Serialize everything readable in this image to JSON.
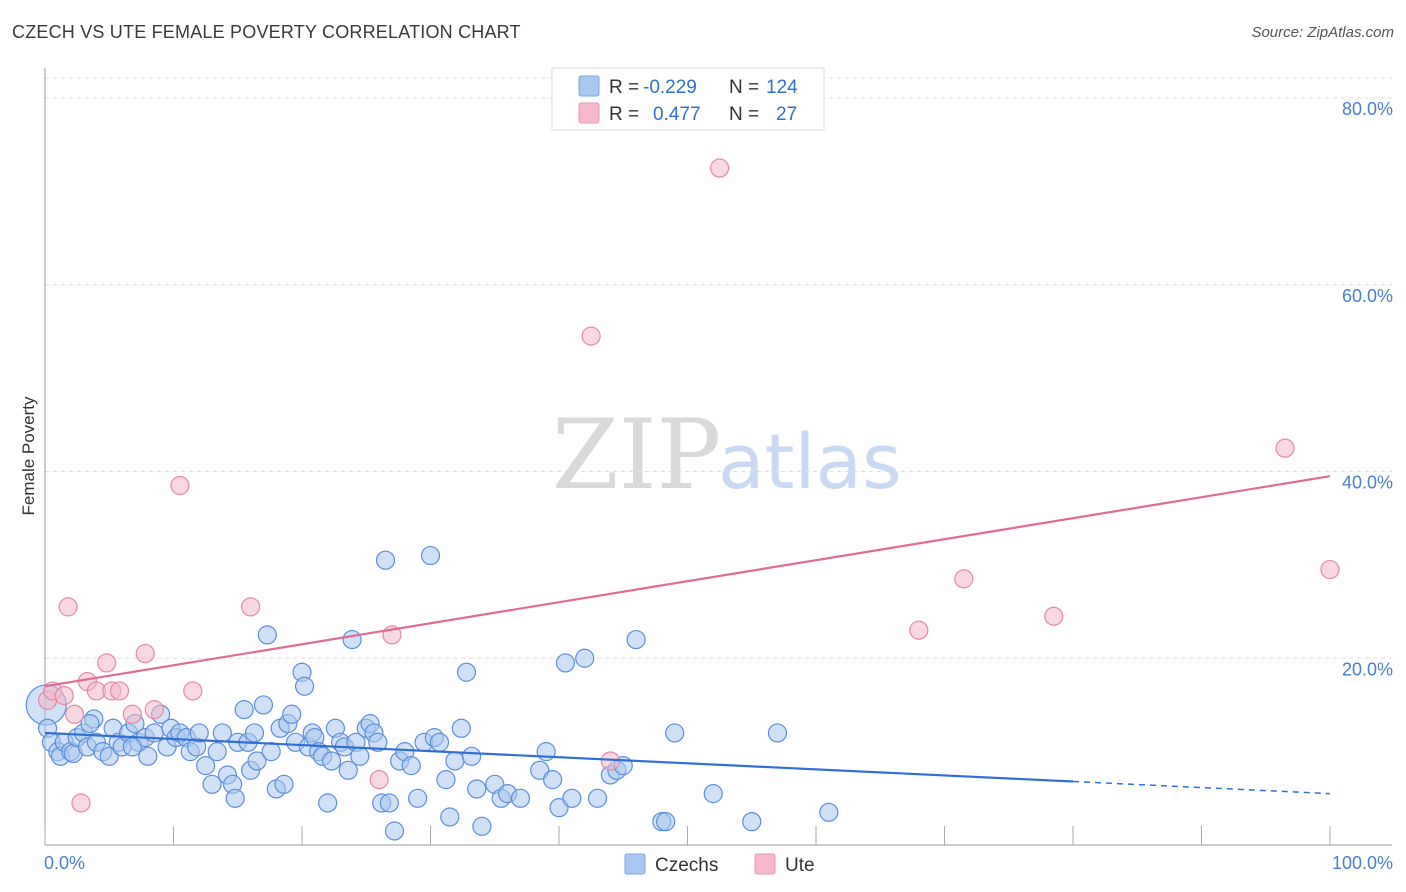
{
  "title": "CZECH VS UTE FEMALE POVERTY CORRELATION CHART",
  "source": "Source: ZipAtlas.com",
  "watermark": {
    "zip": "ZIP",
    "atlas": "atlas"
  },
  "legend_top": [
    {
      "r_label": "R =",
      "r_value": "-0.229",
      "n_label": "N =",
      "n_value": "124",
      "color": "#a9c8f0"
    },
    {
      "r_label": "R =",
      "r_value": "0.477",
      "n_label": "N =",
      "n_value": "27",
      "color": "#f5b8cb"
    }
  ],
  "legend_bottom": [
    {
      "label": "Czechs",
      "color": "#a9c8f0"
    },
    {
      "label": "Ute",
      "color": "#f5b8cb"
    }
  ],
  "chart_data": {
    "type": "scatter",
    "ylabel": "Female Poverty",
    "xlim": [
      0,
      100
    ],
    "ylim": [
      0,
      80
    ],
    "x_tick_labels": [
      "0.0%",
      "100.0%"
    ],
    "y_ticks": [
      20,
      40,
      60,
      80
    ],
    "y_tick_labels": [
      "20.0%",
      "40.0%",
      "60.0%",
      "80.0%"
    ],
    "grid": true,
    "colors": {
      "czechs_fill": "#a9c8f0",
      "czechs_stroke": "#5b8fd9",
      "czechs_line": "#2f6fd6",
      "ute_fill": "#f5b8cb",
      "ute_stroke": "#e48aa6",
      "ute_line": "#e06b95"
    },
    "series": [
      {
        "name": "Czechs",
        "trend": {
          "x0": 0,
          "y0": 12.0,
          "x1": 100,
          "y1": 5.5,
          "solid_until": 80
        },
        "points": [
          [
            0.1,
            15.0
          ],
          [
            0.2,
            12.5
          ],
          [
            0.5,
            11
          ],
          [
            1,
            10
          ],
          [
            1.2,
            9.5
          ],
          [
            1.5,
            11
          ],
          [
            2,
            10
          ],
          [
            2.2,
            9.8
          ],
          [
            2.5,
            11.5
          ],
          [
            3,
            12
          ],
          [
            3.3,
            10.5
          ],
          [
            3.8,
            13.5
          ],
          [
            4,
            11
          ],
          [
            4.5,
            10
          ],
          [
            5,
            9.5
          ],
          [
            5.3,
            12.5
          ],
          [
            5.7,
            11
          ],
          [
            6,
            10.5
          ],
          [
            6.5,
            12
          ],
          [
            7,
            13
          ],
          [
            7.3,
            11
          ],
          [
            7.8,
            11.5
          ],
          [
            8,
            9.5
          ],
          [
            8.5,
            12
          ],
          [
            9,
            14
          ],
          [
            9.5,
            10.5
          ],
          [
            9.8,
            12.5
          ],
          [
            10.2,
            11.5
          ],
          [
            10.5,
            12
          ],
          [
            11,
            11.5
          ],
          [
            11.3,
            10
          ],
          [
            11.8,
            10.5
          ],
          [
            12,
            12
          ],
          [
            12.5,
            8.5
          ],
          [
            13,
            6.5
          ],
          [
            13.4,
            10
          ],
          [
            13.8,
            12
          ],
          [
            14.2,
            7.5
          ],
          [
            14.6,
            6.5
          ],
          [
            14.8,
            5
          ],
          [
            15,
            11
          ],
          [
            15.5,
            14.5
          ],
          [
            15.8,
            11
          ],
          [
            16,
            8
          ],
          [
            16.3,
            12
          ],
          [
            16.5,
            9
          ],
          [
            17,
            15
          ],
          [
            17.3,
            22.5
          ],
          [
            17.6,
            10
          ],
          [
            18,
            6
          ],
          [
            18.3,
            12.5
          ],
          [
            18.6,
            6.5
          ],
          [
            18.9,
            13
          ],
          [
            19.2,
            14
          ],
          [
            19.5,
            11
          ],
          [
            20,
            18.5
          ],
          [
            20.2,
            17
          ],
          [
            20.5,
            10.5
          ],
          [
            20.8,
            12
          ],
          [
            21,
            11.5
          ],
          [
            21.3,
            10
          ],
          [
            21.6,
            9.5
          ],
          [
            22,
            4.5
          ],
          [
            22.3,
            9
          ],
          [
            22.6,
            12.5
          ],
          [
            23,
            11
          ],
          [
            23.3,
            10.5
          ],
          [
            23.6,
            8
          ],
          [
            23.9,
            22
          ],
          [
            24.2,
            11
          ],
          [
            24.5,
            9.5
          ],
          [
            25,
            12.5
          ],
          [
            25.3,
            13
          ],
          [
            25.6,
            12
          ],
          [
            25.9,
            11
          ],
          [
            26.2,
            4.5
          ],
          [
            26.5,
            30.5
          ],
          [
            26.8,
            4.5
          ],
          [
            27.2,
            1.5
          ],
          [
            27.6,
            9
          ],
          [
            28,
            10
          ],
          [
            28.5,
            8.5
          ],
          [
            29,
            5
          ],
          [
            29.5,
            11
          ],
          [
            30,
            31
          ],
          [
            30.3,
            11.5
          ],
          [
            30.7,
            11
          ],
          [
            31.2,
            7
          ],
          [
            31.5,
            3
          ],
          [
            31.9,
            9
          ],
          [
            32.4,
            12.5
          ],
          [
            32.8,
            18.5
          ],
          [
            33.2,
            9.5
          ],
          [
            33.6,
            6
          ],
          [
            34,
            2
          ],
          [
            35,
            6.5
          ],
          [
            35.5,
            5
          ],
          [
            36,
            5.5
          ],
          [
            37,
            5
          ],
          [
            38.5,
            8
          ],
          [
            39,
            10
          ],
          [
            39.5,
            7
          ],
          [
            40,
            4
          ],
          [
            40.5,
            19.5
          ],
          [
            41,
            5
          ],
          [
            42,
            20
          ],
          [
            43,
            5
          ],
          [
            44,
            7.5
          ],
          [
            44.5,
            8
          ],
          [
            45,
            8.5
          ],
          [
            46,
            22
          ],
          [
            48,
            2.5
          ],
          [
            49,
            12
          ],
          [
            52,
            5.5
          ],
          [
            55,
            2.5
          ],
          [
            57,
            12
          ],
          [
            61,
            3.5
          ],
          [
            48.3,
            2.5
          ],
          [
            3.5,
            13
          ],
          [
            6.8,
            10.5
          ]
        ]
      },
      {
        "name": "Ute",
        "trend": {
          "x0": 0,
          "y0": 17.0,
          "x1": 100,
          "y1": 39.5,
          "solid_until": 100
        },
        "points": [
          [
            0.2,
            15.5
          ],
          [
            0.6,
            16.5
          ],
          [
            1.5,
            16
          ],
          [
            1.8,
            25.5
          ],
          [
            2.3,
            14
          ],
          [
            2.8,
            4.5
          ],
          [
            3.3,
            17.5
          ],
          [
            4,
            16.5
          ],
          [
            4.8,
            19.5
          ],
          [
            5.2,
            16.5
          ],
          [
            5.8,
            16.5
          ],
          [
            6.8,
            14
          ],
          [
            7.8,
            20.5
          ],
          [
            8.5,
            14.5
          ],
          [
            10.5,
            38.5
          ],
          [
            11.5,
            16.5
          ],
          [
            16,
            25.5
          ],
          [
            26,
            7
          ],
          [
            27,
            22.5
          ],
          [
            42.5,
            54.5
          ],
          [
            44,
            9
          ],
          [
            52.5,
            72.5
          ],
          [
            68,
            23
          ],
          [
            71.5,
            28.5
          ],
          [
            78.5,
            24.5
          ],
          [
            96.5,
            42.5
          ],
          [
            100,
            29.5
          ]
        ]
      }
    ]
  }
}
